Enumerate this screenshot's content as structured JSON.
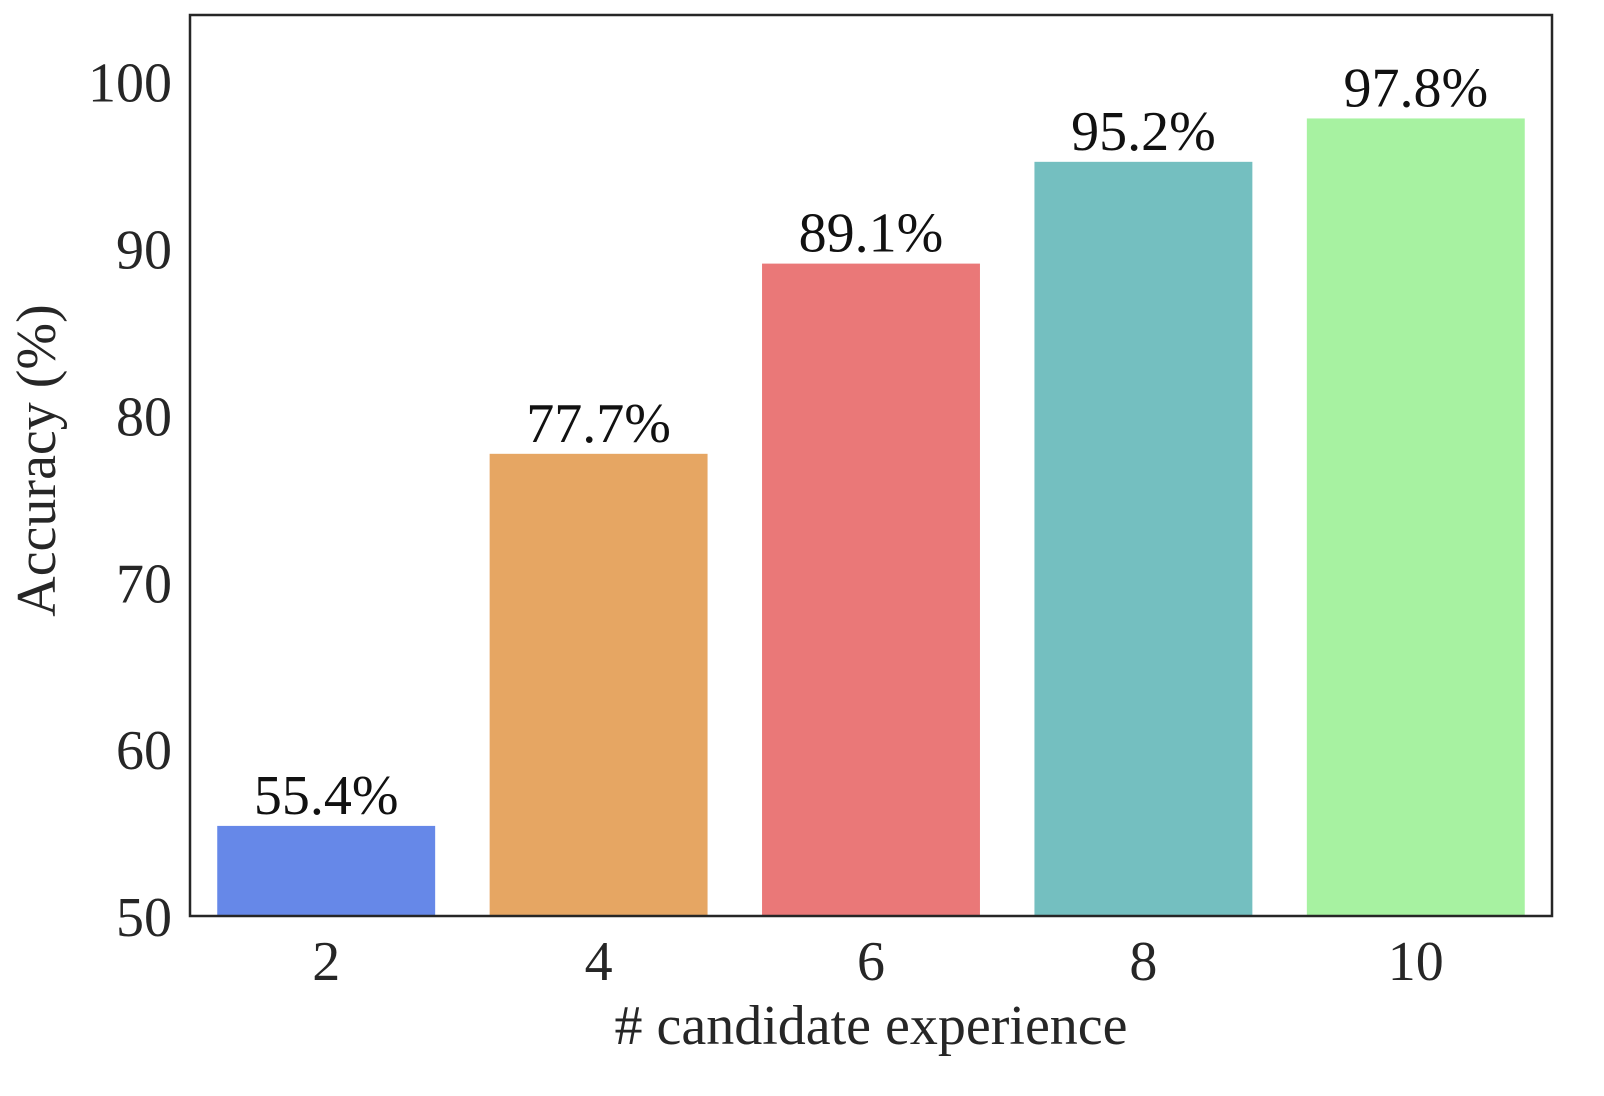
{
  "chart_data": {
    "type": "bar",
    "title": "",
    "xlabel": "# candidate experience",
    "ylabel": "Accuracy (%)",
    "categories": [
      "2",
      "4",
      "6",
      "8",
      "10"
    ],
    "values": [
      55.4,
      77.7,
      89.1,
      95.2,
      97.8
    ],
    "value_labels": [
      "55.4%",
      "77.7%",
      "89.1%",
      "95.2%",
      "97.8%"
    ],
    "colors": [
      "#6688e8",
      "#e6a663",
      "#ea7878",
      "#74bfc0",
      "#a7f2a1"
    ],
    "ylim": [
      50,
      104
    ],
    "yticks": [
      50,
      60,
      70,
      80,
      90,
      100
    ],
    "grid": false,
    "legend": "none"
  }
}
